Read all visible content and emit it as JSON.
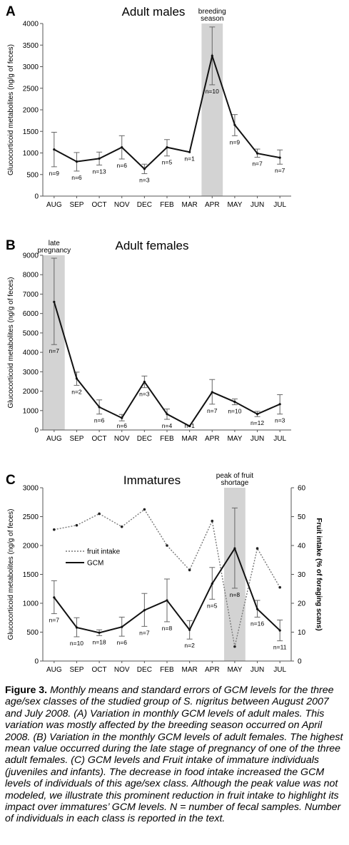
{
  "chart_data": [
    {
      "type": "line",
      "panel_letter": "A",
      "title": "Adult males",
      "ylabel": "Glucocorticoid metabolites (ng/g of feces)",
      "categories": [
        "AUG",
        "SEP",
        "OCT",
        "NOV",
        "DEC",
        "FEB",
        "MAR",
        "APR",
        "MAY",
        "JUN",
        "JUL"
      ],
      "ylim": [
        0,
        4000
      ],
      "yticks": [
        0,
        500,
        1000,
        1500,
        2000,
        2500,
        3000,
        3500,
        4000
      ],
      "series": [
        {
          "values": [
            1080,
            800,
            870,
            1130,
            630,
            1130,
            1020,
            3250,
            1650,
            990,
            890
          ],
          "error_low": [
            680,
            580,
            720,
            860,
            520,
            930,
            1020,
            2580,
            1400,
            900,
            740
          ],
          "error_high": [
            1480,
            1010,
            1020,
            1400,
            740,
            1310,
            1020,
            3920,
            1890,
            1090,
            1070
          ],
          "n_labels": [
            "n=9",
            "n=6",
            "n=13",
            "n=6",
            "n=3",
            "n=5",
            "n=1",
            "n=10",
            "n=9",
            "n=7",
            "n=7"
          ]
        }
      ],
      "shaded_category": "APR",
      "shade_label": [
        "breeding",
        "season"
      ]
    },
    {
      "type": "line",
      "panel_letter": "B",
      "title": "Adult females",
      "ylabel": "Glucocorticoid metabolites (ng/g of feces)",
      "categories": [
        "AUG",
        "SEP",
        "OCT",
        "NOV",
        "DEC",
        "FEB",
        "MAR",
        "APR",
        "MAY",
        "JUN",
        "JUL"
      ],
      "ylim": [
        0,
        9000
      ],
      "yticks": [
        0,
        1000,
        2000,
        3000,
        4000,
        5000,
        6000,
        7000,
        8000,
        9000
      ],
      "series": [
        {
          "values": [
            6600,
            2650,
            1180,
            620,
            2480,
            820,
            200,
            1950,
            1450,
            820,
            1330
          ],
          "error_low": [
            4400,
            2300,
            820,
            470,
            2180,
            550,
            200,
            1330,
            1300,
            690,
            820
          ],
          "error_high": [
            8850,
            2980,
            1550,
            800,
            2780,
            1080,
            200,
            2600,
            1600,
            960,
            1820
          ],
          "n_labels": [
            "n=7",
            "n=2",
            "n=6",
            "n=6",
            "n=3",
            "n=4",
            "n=1",
            "n=7",
            "n=10",
            "n=12",
            "n=3"
          ]
        }
      ],
      "shaded_category": "AUG",
      "shade_label": [
        "late",
        "pregnancy"
      ]
    },
    {
      "type": "line",
      "panel_letter": "C",
      "title": "Immatures",
      "ylabel": "Glucocorticoid metabolites (ng/g of feces)",
      "y2label": "Fruit intake (% of foraging scans)",
      "categories": [
        "AUG",
        "SEP",
        "OCT",
        "NOV",
        "DEC",
        "FEB",
        "MAR",
        "APR",
        "MAY",
        "JUN",
        "JUL"
      ],
      "ylim": [
        0,
        3000
      ],
      "yticks": [
        0,
        500,
        1000,
        1500,
        2000,
        2500,
        3000
      ],
      "y2lim": [
        0,
        60
      ],
      "y2ticks": [
        0,
        10,
        20,
        30,
        40,
        50,
        60
      ],
      "series": [
        {
          "name": "GCM",
          "values": [
            1100,
            580,
            490,
            590,
            880,
            1050,
            540,
            1340,
            1950,
            900,
            530
          ],
          "error_low": [
            820,
            420,
            440,
            430,
            600,
            680,
            380,
            1070,
            1260,
            760,
            350
          ],
          "error_high": [
            1390,
            750,
            540,
            760,
            1170,
            1420,
            700,
            1620,
            2650,
            1050,
            710
          ],
          "n_labels": [
            "n=7",
            "n=10",
            "n=18",
            "n=6",
            "n=7",
            "n=8",
            "n=2",
            "n=5",
            "n=8",
            "n=16",
            "n=11"
          ]
        },
        {
          "name": "fruit intake",
          "axis": "right",
          "values": [
            45.5,
            47,
            51,
            46.5,
            52.5,
            40,
            31.5,
            48.5,
            5,
            39,
            25.5
          ]
        }
      ],
      "shaded_category": "MAY",
      "shade_label": [
        "peak of fruit",
        "shortage"
      ]
    }
  ],
  "caption": {
    "lead": "Figure 3.",
    "body": " Monthly means and standard errors of GCM levels for the three age/sex classes of the studied group of S. nigritus between August 2007 and July 2008. (A) Variation in monthly GCM levels of adult males. This variation was mostly affected by the breeding season occurred on April 2008. (B) Variation in the monthly GCM levels of adult females. The highest mean value occurred during the late stage of pregnancy of one of the three adult females. (C) GCM levels and Fruit intake of immature individuals (juveniles and infants). The decrease in food intake increased the GCM levels of individuals of this age/sex class. Although the peak value was not modeled, we illustrate this prominent reduction in fruit intake to highlight its impact over immatures’ GCM levels. N = number of fecal samples. Number of individuals in each class is reported in the text."
  }
}
